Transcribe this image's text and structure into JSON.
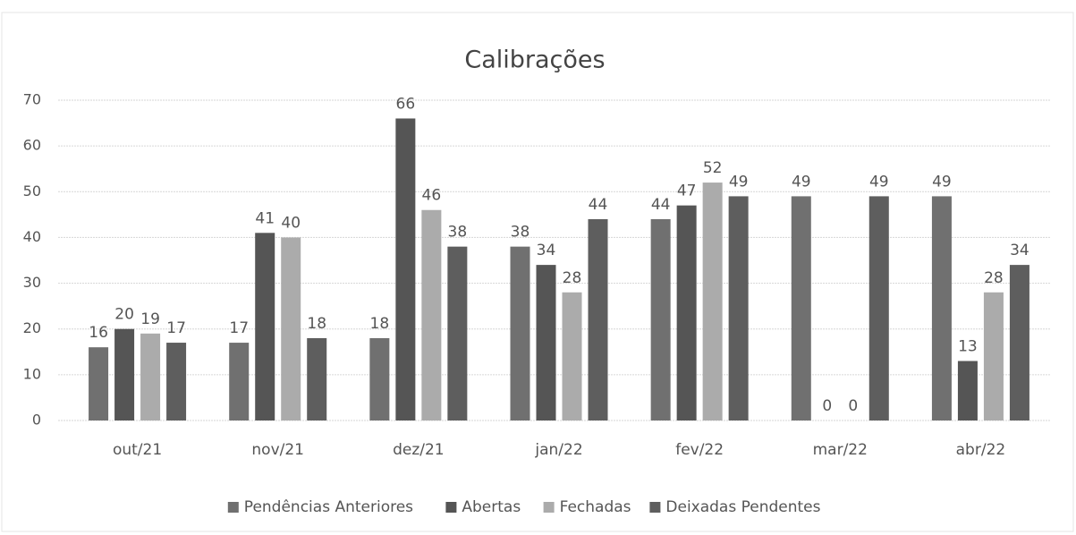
{
  "chart_data": {
    "type": "bar",
    "title": "Calibrações",
    "categories": [
      "out/21",
      "nov/21",
      "dez/21",
      "jan/22",
      "fev/22",
      "mar/22",
      "abr/22"
    ],
    "series": [
      {
        "name": "Pendências Anteriores",
        "color": "#707070",
        "values": [
          16,
          17,
          18,
          38,
          44,
          49,
          49
        ]
      },
      {
        "name": "Abertas",
        "color": "#555555",
        "values": [
          20,
          41,
          66,
          34,
          47,
          0,
          13
        ]
      },
      {
        "name": "Fechadas",
        "color": "#ababab",
        "values": [
          19,
          40,
          46,
          28,
          52,
          0,
          28
        ]
      },
      {
        "name": "Deixadas Pendentes",
        "color": "#5e5e5e",
        "values": [
          17,
          18,
          38,
          44,
          49,
          49,
          34
        ]
      }
    ],
    "ylim": [
      0,
      70
    ],
    "yticks": [
      0,
      10,
      20,
      30,
      40,
      50,
      60,
      70
    ],
    "grid": true,
    "legend": "bottom"
  }
}
